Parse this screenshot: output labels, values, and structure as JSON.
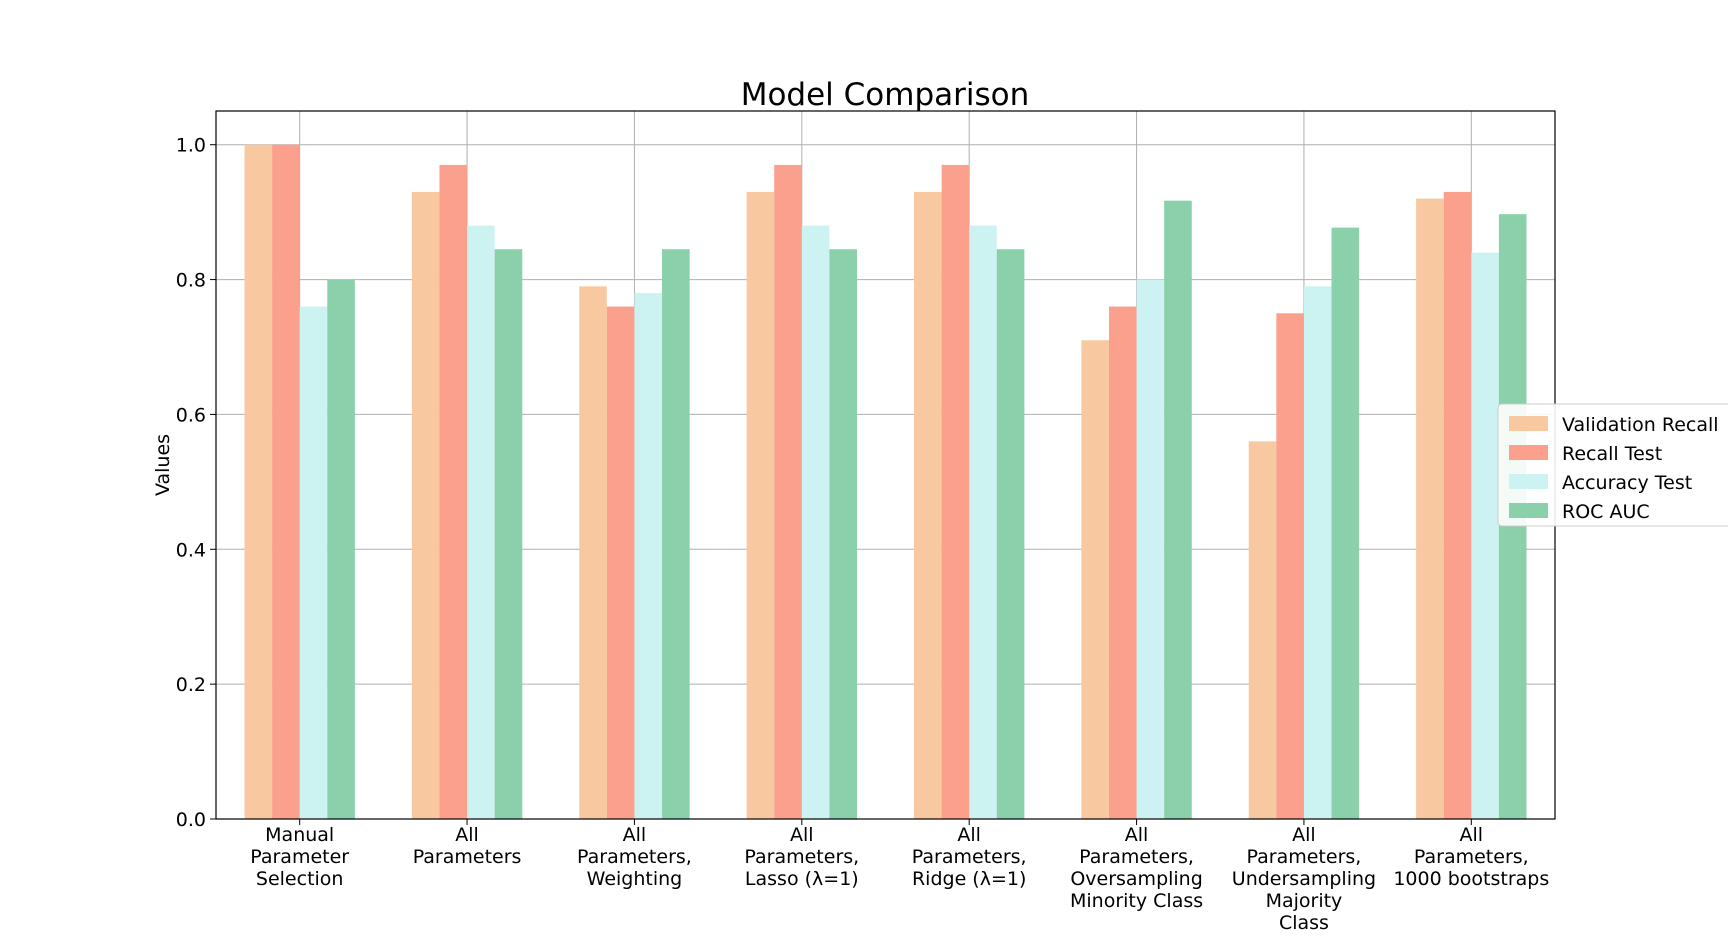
{
  "chart_data": {
    "type": "bar",
    "title": "Model Comparison",
    "xlabel": "",
    "ylabel": "Values",
    "ylim": [
      0,
      1.05
    ],
    "yticks": [
      "0.0",
      "0.2",
      "0.4",
      "0.6",
      "0.8",
      "1.0"
    ],
    "ytick_values": [
      0.0,
      0.2,
      0.4,
      0.6,
      0.8,
      1.0
    ],
    "grid": true,
    "legend_position": "right",
    "categories": [
      [
        "Manual",
        "Parameter",
        "Selection"
      ],
      [
        "All",
        "Parameters"
      ],
      [
        "All",
        "Parameters,",
        "Weighting"
      ],
      [
        "All",
        "Parameters,",
        "Lasso (λ=1)"
      ],
      [
        "All",
        "Parameters,",
        "Ridge (λ=1)"
      ],
      [
        "All",
        "Parameters,",
        "Oversampling",
        "Minority Class"
      ],
      [
        "All",
        "Parameters,",
        "Undersampling",
        "Majority",
        "Class"
      ],
      [
        "All",
        "Parameters,",
        "1000 bootstraps"
      ]
    ],
    "series": [
      {
        "name": "Validation Recall",
        "color": "#f8c9a0",
        "values": [
          1.0,
          0.93,
          0.79,
          0.93,
          0.93,
          0.71,
          0.56,
          0.92
        ]
      },
      {
        "name": "Recall Test",
        "color": "#fba08c",
        "values": [
          1.0,
          0.97,
          0.76,
          0.97,
          0.97,
          0.76,
          0.75,
          0.93
        ]
      },
      {
        "name": "Accuracy Test",
        "color": "#cdf2f2",
        "values": [
          0.76,
          0.88,
          0.78,
          0.88,
          0.88,
          0.8,
          0.79,
          0.84
        ]
      },
      {
        "name": "ROC AUC",
        "color": "#8ad0aa",
        "values": [
          0.8,
          0.845,
          0.845,
          0.845,
          0.845,
          0.917,
          0.877,
          0.897
        ]
      }
    ]
  }
}
